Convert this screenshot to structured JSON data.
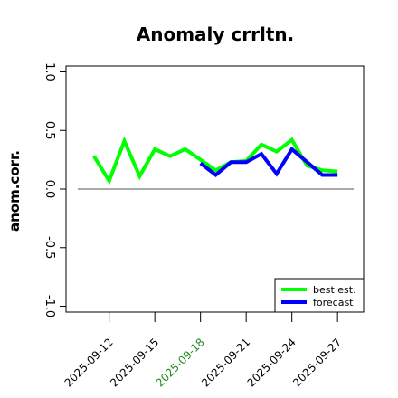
{
  "chart_data": {
    "type": "line",
    "title": "Anomaly crrltn.",
    "ylabel": "anom.corr.",
    "xlabel": "",
    "ylim": [
      -1.05,
      1.05
    ],
    "yticks": [
      -1.0,
      -0.5,
      0.0,
      0.5,
      1.0
    ],
    "ytick_labels": [
      "-1.0",
      "-0.5",
      "0.0",
      "0.5",
      "1.0"
    ],
    "x_range": [
      "2025-09-10",
      "2025-09-28"
    ],
    "xticks": [
      "2025-09-12",
      "2025-09-15",
      "2025-09-18",
      "2025-09-21",
      "2025-09-24",
      "2025-09-27"
    ],
    "xtick_colors": [
      "#000000",
      "#000000",
      "#228b22",
      "#000000",
      "#000000",
      "#000000"
    ],
    "reference_line": 0.0,
    "legend_position": "lower-right",
    "series": [
      {
        "name": "best est.",
        "color": "#00ff00",
        "x": [
          "2025-09-11",
          "2025-09-12",
          "2025-09-13",
          "2025-09-14",
          "2025-09-15",
          "2025-09-16",
          "2025-09-17",
          "2025-09-18",
          "2025-09-19",
          "2025-09-20",
          "2025-09-21",
          "2025-09-22",
          "2025-09-23",
          "2025-09-24",
          "2025-09-25",
          "2025-09-26",
          "2025-09-27"
        ],
        "values": [
          0.28,
          0.07,
          0.41,
          0.11,
          0.34,
          0.28,
          0.34,
          0.25,
          0.16,
          0.23,
          0.24,
          0.38,
          0.32,
          0.42,
          0.2,
          0.16,
          0.15
        ]
      },
      {
        "name": "forecast",
        "color": "#0000ff",
        "x": [
          "2025-09-18",
          "2025-09-19",
          "2025-09-20",
          "2025-09-21",
          "2025-09-22",
          "2025-09-23",
          "2025-09-24",
          "2025-09-25",
          "2025-09-26",
          "2025-09-27"
        ],
        "values": [
          0.22,
          0.12,
          0.23,
          0.23,
          0.3,
          0.13,
          0.34,
          0.23,
          0.12,
          0.12
        ]
      }
    ]
  }
}
